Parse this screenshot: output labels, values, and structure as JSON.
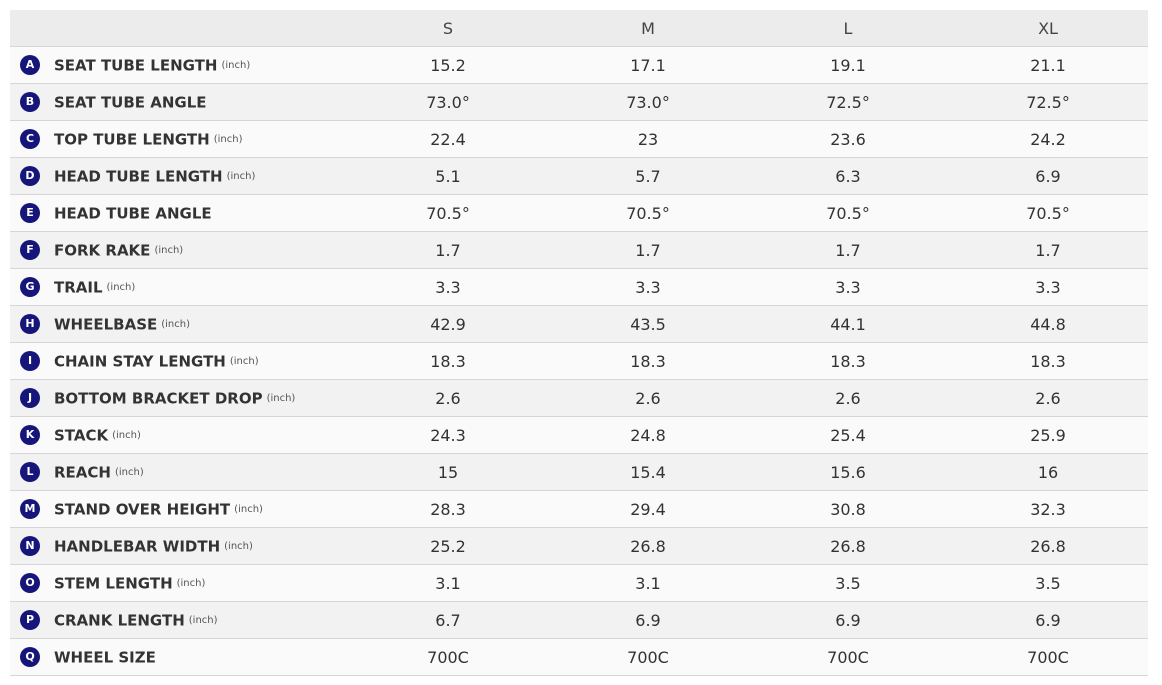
{
  "table": {
    "header": [
      "S",
      "M",
      "L",
      "XL"
    ],
    "rows": [
      {
        "letter": "A",
        "name": "SEAT TUBE LENGTH",
        "unit": "(inch)",
        "values": [
          "15.2",
          "17.1",
          "19.1",
          "21.1"
        ]
      },
      {
        "letter": "B",
        "name": "SEAT TUBE ANGLE",
        "values": [
          "73.0°",
          "73.0°",
          "72.5°",
          "72.5°"
        ]
      },
      {
        "letter": "C",
        "name": "TOP TUBE LENGTH",
        "unit": "(inch)",
        "values": [
          "22.4",
          "23",
          "23.6",
          "24.2"
        ]
      },
      {
        "letter": "D",
        "name": "HEAD TUBE LENGTH",
        "unit": "(inch)",
        "values": [
          "5.1",
          "5.7",
          "6.3",
          "6.9"
        ]
      },
      {
        "letter": "E",
        "name": "HEAD TUBE ANGLE",
        "values": [
          "70.5°",
          "70.5°",
          "70.5°",
          "70.5°"
        ]
      },
      {
        "letter": "F",
        "name": "FORK RAKE",
        "unit": "(inch)",
        "values": [
          "1.7",
          "1.7",
          "1.7",
          "1.7"
        ]
      },
      {
        "letter": "G",
        "name": "TRAIL",
        "unit": "(inch)",
        "values": [
          "3.3",
          "3.3",
          "3.3",
          "3.3"
        ]
      },
      {
        "letter": "H",
        "name": "WHEELBASE",
        "unit": "(inch)",
        "values": [
          "42.9",
          "43.5",
          "44.1",
          "44.8"
        ]
      },
      {
        "letter": "I",
        "name": "CHAIN STAY LENGTH",
        "unit": "(inch)",
        "values": [
          "18.3",
          "18.3",
          "18.3",
          "18.3"
        ]
      },
      {
        "letter": "J",
        "name": "BOTTOM BRACKET DROP",
        "unit": "(inch)",
        "values": [
          "2.6",
          "2.6",
          "2.6",
          "2.6"
        ]
      },
      {
        "letter": "K",
        "name": "STACK",
        "unit": "(inch)",
        "values": [
          "24.3",
          "24.8",
          "25.4",
          "25.9"
        ]
      },
      {
        "letter": "L",
        "name": "REACH",
        "unit": "(inch)",
        "values": [
          "15",
          "15.4",
          "15.6",
          "16"
        ]
      },
      {
        "letter": "M",
        "name": "STAND OVER HEIGHT",
        "unit": "(inch)",
        "values": [
          "28.3",
          "29.4",
          "30.8",
          "32.3"
        ]
      },
      {
        "letter": "N",
        "name": "HANDLEBAR WIDTH",
        "unit": "(inch)",
        "values": [
          "25.2",
          "26.8",
          "26.8",
          "26.8"
        ]
      },
      {
        "letter": "O",
        "name": "STEM LENGTH",
        "unit": "(inch)",
        "values": [
          "3.1",
          "3.1",
          "3.5",
          "3.5"
        ]
      },
      {
        "letter": "P",
        "name": "CRANK LENGTH",
        "unit": "(inch)",
        "values": [
          "6.7",
          "6.9",
          "6.9",
          "6.9"
        ]
      },
      {
        "letter": "Q",
        "name": "WHEEL SIZE",
        "values": [
          "700C",
          "700C",
          "700C",
          "700C"
        ]
      }
    ]
  }
}
